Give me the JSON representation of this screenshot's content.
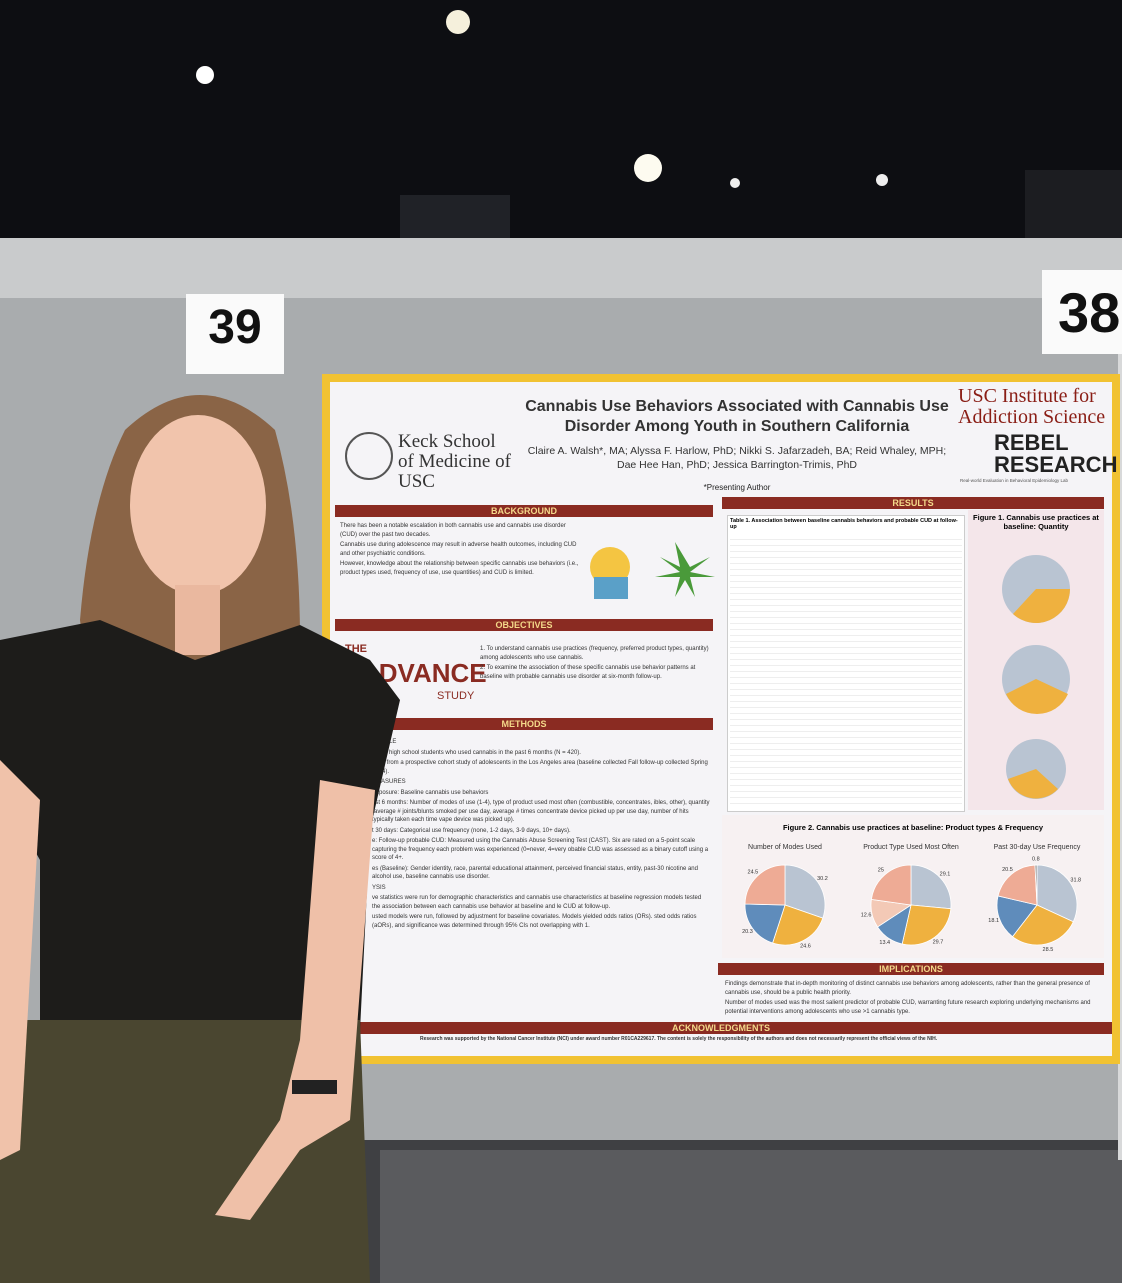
{
  "board_numbers": [
    "39",
    "38"
  ],
  "poster": {
    "title": "Cannabis Use Behaviors Associated with Cannabis Use Disorder Among Youth in Southern California",
    "authors": "Claire A. Walsh*, MA; Alyssa F. Harlow, PhD; Nikki S. Jafarzadeh, BA; Reid Whaley, MPH; Dae Hee Han, PhD; Jessica Barrington-Trimis, PhD",
    "presenting_note": "*Presenting Author",
    "logos": {
      "keck": "Keck School of Medicine of USC",
      "usc_institute": "USC Institute for Addiction Science",
      "rebel": "REBEL RESEARCH",
      "rebel_tagline": "Real-world Evaluation in Behavioral Epidemiology Lab",
      "advance_the": "THE",
      "advance_name": "ADVANCE",
      "advance_study": "STUDY"
    },
    "background": {
      "heading": "BACKGROUND",
      "bullets": [
        "There has been a notable escalation in both cannabis use and cannabis use disorder (CUD) over the past two decades.",
        "Cannabis use during adolescence may result in adverse health outcomes, including CUD and other psychiatric conditions.",
        "However, knowledge about the relationship between specific cannabis use behaviors (i.e., product types used, frequency of use, use quantities) and CUD is limited."
      ]
    },
    "objectives": {
      "heading": "OBJECTIVES",
      "items": [
        "1. To understand cannabis use practices (frequency, preferred product types, quantity) among adolescents who use cannabis.",
        "2. To examine the association of these specific cannabis use behavior patterns at baseline with probable cannabis use disorder at six-month follow-up."
      ]
    },
    "methods": {
      "heading": "METHODS",
      "lines": [
        "SAMPLE",
        "grade high school students who used cannabis in the past 6 months (N = 420).",
        "were from a prospective cohort study of adolescents in the Los Angeles area (baseline collected Fall follow-up collected Spring 2024).",
        "MEASURES",
        "Exposure: Baseline cannabis use behaviors",
        "ast 6 months: Number of modes of use (1-4), type of product used most often (combustible, concentrates, ibles, other), quantity (average # joints/blunts smoked per use day, average # times concentrate device picked up per use day, number of hits typically taken each time vape device was picked up).",
        "t 30 days: Categorical use frequency (none, 1-2 days, 3-9 days, 10+ days).",
        "e: Follow-up probable CUD: Measured using the Cannabis Abuse Screening Test (CAST). Six are rated on a 5-point scale capturing the frequency each problem was experienced (0=never, 4=very obable CUD was assessed as a binary cutoff using a score of 4+.",
        "es (Baseline): Gender identity, race, parental educational attainment, perceived financial status, entity, past-30 nicotine and alcohol use, baseline cannabis use disorder.",
        "YSIS",
        "ve statistics were run for demographic characteristics and cannabis use characteristics at baseline regression models tested the association between each cannabis use behavior at baseline and le CUD at follow-up.",
        "usted models were run, followed by adjustment for baseline covariates. Models yielded odds ratios (ORs). sted odds ratios (aORs), and significance was determined through 95% CIs not overlapping with 1."
      ]
    },
    "results": {
      "heading": "RESULTS",
      "table_title": "Table 1. Association between baseline cannabis behaviors and probable CUD at follow-up",
      "figure1_title": "Figure 1. Cannabis use practices at baseline: Quantity",
      "figure2_title": "Figure 2. Cannabis use practices at baseline: Product types & Frequency",
      "pies": [
        {
          "title": "Number of Modes Used",
          "values": [
            30.2,
            24.6,
            20.3,
            24.5
          ],
          "colors": [
            "#b9c4d2",
            "#efb13f",
            "#5f8cbb",
            "#eeab95"
          ]
        },
        {
          "title": "Product Type Used Most Often",
          "values": [
            29.1,
            29.7,
            13.4,
            12.6,
            25
          ],
          "colors": [
            "#b9c4d2",
            "#efb13f",
            "#5f8cbb",
            "#f3c9b6",
            "#eeab95"
          ]
        },
        {
          "title": "Past 30-day Use Frequency",
          "values": [
            31.8,
            28.5,
            18.1,
            20.5,
            0.8
          ],
          "colors": [
            "#b9c4d2",
            "#efb13f",
            "#5f8cbb",
            "#eeab95",
            "#8b8b8b"
          ]
        }
      ]
    },
    "implications": {
      "heading": "IMPLICATIONS",
      "bullets": [
        "Findings demonstrate that in-depth monitoring of distinct cannabis use behaviors among adolescents, rather than the general presence of cannabis use, should be a public health priority.",
        "Number of modes used was the most salient predictor of probable CUD, warranting future research exploring underlying mechanisms and potential interventions among adolescents who use >1 cannabis type."
      ]
    },
    "acknowledgments": {
      "heading": "ACKNOWLEDGMENTS",
      "text": "Research was supported by the National Cancer Institute (NCI) under award number R01CA229617. The content is solely the responsibility of the authors and does not necessarily represent the official views of the NIH."
    }
  }
}
